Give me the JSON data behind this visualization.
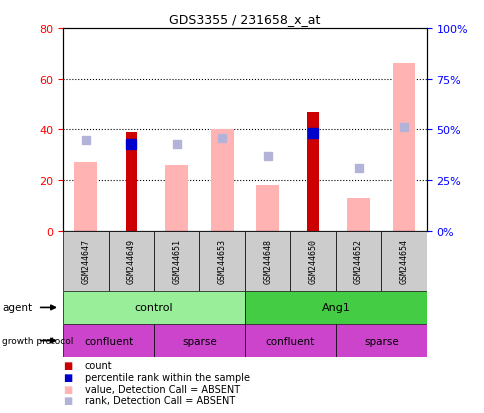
{
  "title": "GDS3355 / 231658_x_at",
  "samples": [
    "GSM244647",
    "GSM244649",
    "GSM244651",
    "GSM244653",
    "GSM244648",
    "GSM244650",
    "GSM244652",
    "GSM244654"
  ],
  "count_values": [
    0,
    39,
    0,
    0,
    0,
    47,
    0,
    0
  ],
  "percentile_rank": [
    null,
    43,
    null,
    null,
    null,
    48,
    null,
    null
  ],
  "value_absent": [
    27,
    null,
    26,
    40,
    18,
    null,
    13,
    66
  ],
  "rank_absent": [
    45,
    null,
    43,
    46,
    37,
    null,
    31,
    51
  ],
  "left_ylim": [
    0,
    80
  ],
  "left_yticks": [
    0,
    20,
    40,
    60,
    80
  ],
  "right_ylim": [
    0,
    100
  ],
  "right_yticks": [
    0,
    25,
    50,
    75,
    100
  ],
  "color_count": "#cc0000",
  "color_percentile": "#0000cc",
  "color_value_absent": "#ffb3b3",
  "color_rank_absent": "#b3b3d9",
  "color_control": "#99ee99",
  "color_ang1": "#44cc44",
  "color_confluent": "#cc44cc",
  "color_sparse": "#cc44cc",
  "color_sample_box": "#cccccc",
  "grid_yticks": [
    20,
    40,
    60
  ]
}
